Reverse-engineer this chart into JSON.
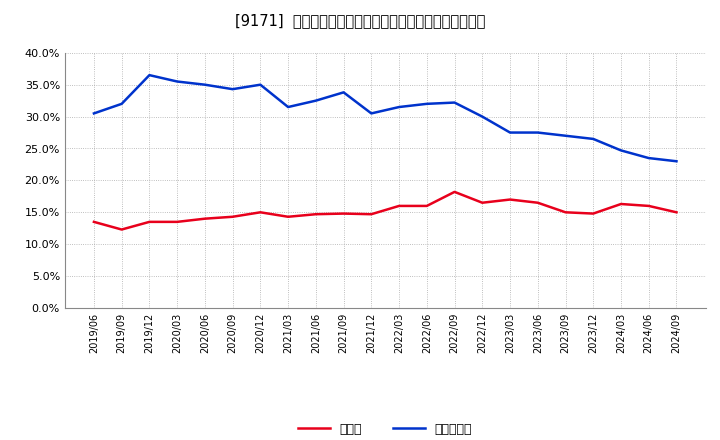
{
  "title": "[9171]  現預金、有利子負債の総資産に対する比率の推移",
  "x_labels": [
    "2019/06",
    "2019/09",
    "2019/12",
    "2020/03",
    "2020/06",
    "2020/09",
    "2020/12",
    "2021/03",
    "2021/06",
    "2021/09",
    "2021/12",
    "2022/03",
    "2022/06",
    "2022/09",
    "2022/12",
    "2023/03",
    "2023/06",
    "2023/09",
    "2023/12",
    "2024/03",
    "2024/06",
    "2024/09"
  ],
  "cash": [
    0.135,
    0.123,
    0.135,
    0.135,
    0.14,
    0.143,
    0.15,
    0.143,
    0.147,
    0.148,
    0.147,
    0.16,
    0.16,
    0.182,
    0.165,
    0.17,
    0.165,
    0.15,
    0.148,
    0.163,
    0.16,
    0.15
  ],
  "debt": [
    0.305,
    0.32,
    0.365,
    0.355,
    0.35,
    0.343,
    0.35,
    0.315,
    0.325,
    0.338,
    0.305,
    0.315,
    0.32,
    0.322,
    0.3,
    0.275,
    0.275,
    0.27,
    0.265,
    0.247,
    0.235,
    0.23
  ],
  "cash_color": "#e8001c",
  "debt_color": "#0033cc",
  "bg_color": "#ffffff",
  "plot_bg_color": "#ffffff",
  "grid_color": "#aaaaaa",
  "legend_cash": "現預金",
  "legend_debt": "有利子負債",
  "ylim": [
    0.0,
    0.4
  ],
  "yticks": [
    0.0,
    0.05,
    0.1,
    0.15,
    0.2,
    0.25,
    0.3,
    0.35,
    0.4
  ]
}
